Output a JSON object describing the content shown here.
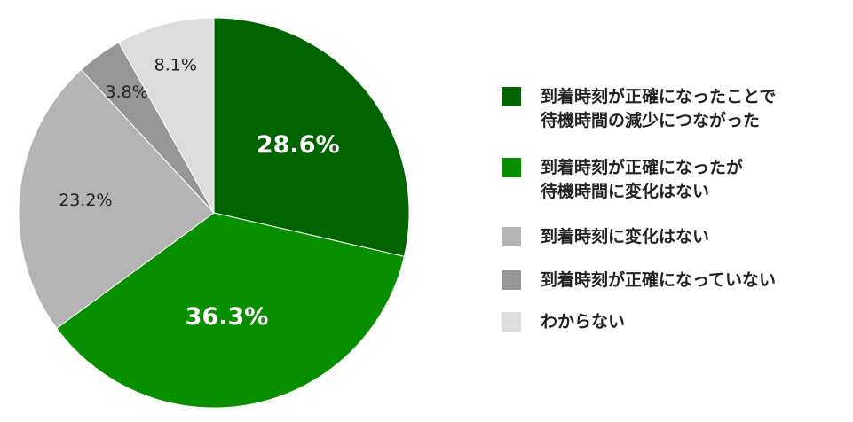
{
  "chart_data": {
    "type": "pie",
    "title": "",
    "start_angle_deg": 0,
    "direction": "clockwise",
    "slices": [
      {
        "label": "到着時刻が正確になったことで\n待機時間の減少につながった",
        "value": 28.6,
        "display": "28.6%",
        "color": "#006400",
        "label_color": "#ffffff"
      },
      {
        "label": "到着時刻が正確になったが\n待機時間に変化はない",
        "value": 36.3,
        "display": "36.3%",
        "color": "#078f00",
        "label_color": "#ffffff"
      },
      {
        "label": "到着時刻に変化はない",
        "value": 23.2,
        "display": "23.2%",
        "color": "#b4b4b4",
        "label_color": "#222222"
      },
      {
        "label": "到着時刻が正確になっていない",
        "value": 3.8,
        "display": "3.8%",
        "color": "#969696",
        "label_color": "#222222"
      },
      {
        "label": "わからない",
        "value": 8.1,
        "display": "8.1%",
        "color": "#dcdcdc",
        "label_color": "#222222"
      }
    ],
    "legend_position": "right"
  }
}
